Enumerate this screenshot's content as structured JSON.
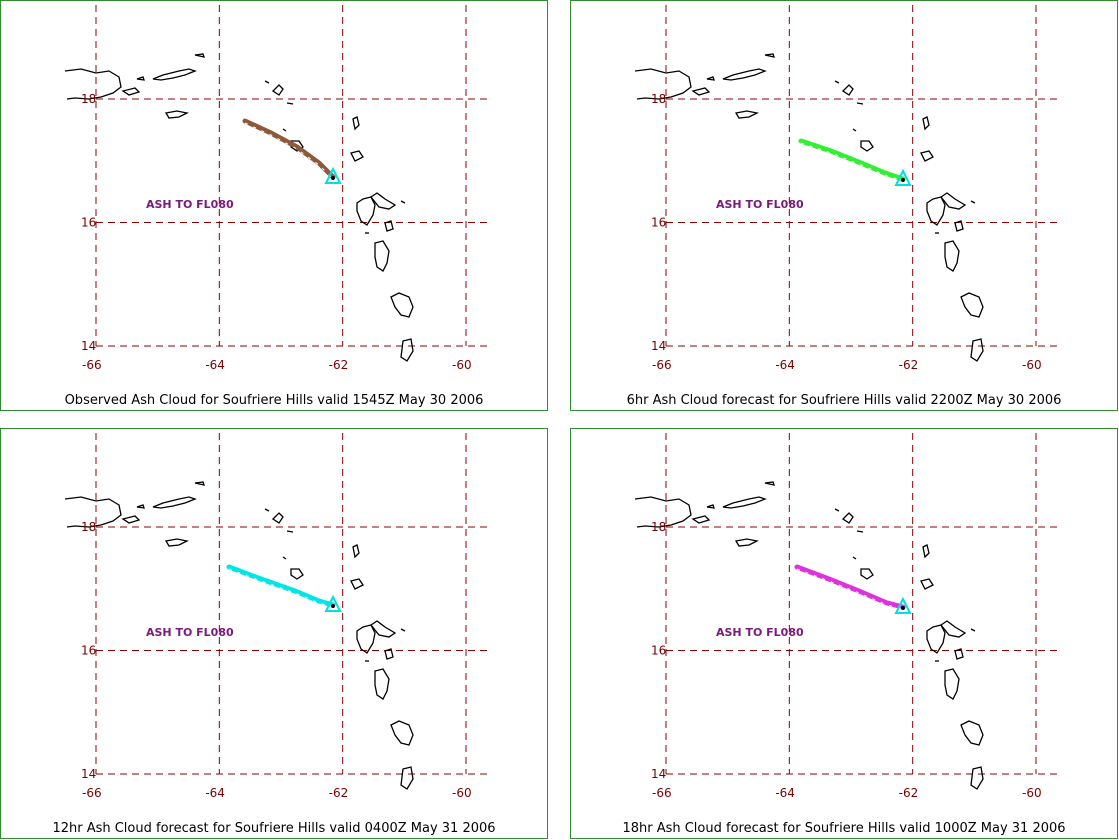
{
  "map": {
    "lon_ticks": [
      "-66",
      "-64",
      "-62",
      "-60"
    ],
    "lat_ticks": [
      "18",
      "16",
      "14"
    ],
    "source_marker_color": "#00e0e0",
    "annotation": "ASH TO FL080"
  },
  "panels": [
    {
      "caption": "Observed Ash Cloud for Soufriere  Hills valid 1545Z May 30 2006",
      "plume_color": "#8b5a3c",
      "annotation": "ASH TO FL080"
    },
    {
      "caption": "6hr Ash Cloud forecast for Soufriere  Hills valid 2200Z May 30 2006",
      "plume_color": "#33ee33",
      "annotation": "ASH TO FL080"
    },
    {
      "caption": "12hr Ash Cloud forecast for Soufriere  Hills valid 0400Z May 31 2006",
      "plume_color": "#00e5e5",
      "annotation": "ASH TO FL080"
    },
    {
      "caption": "18hr Ash Cloud forecast for Soufriere  Hills valid 1000Z May 31 2006",
      "plume_color": "#dd33dd",
      "annotation": "ASH TO FL080"
    }
  ]
}
